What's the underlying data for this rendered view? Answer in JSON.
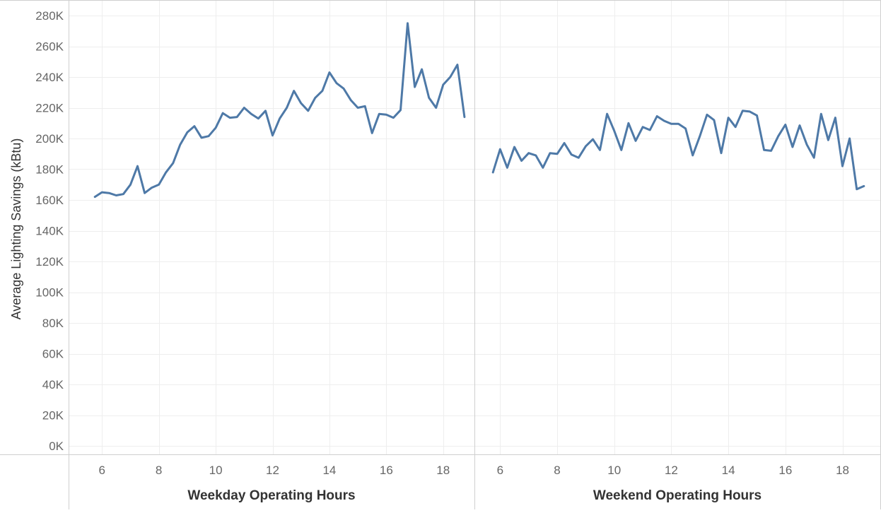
{
  "chart_data": {
    "type": "line",
    "ylabel": "Average Lighting Savings (kBtu)",
    "ylim": [
      0,
      280000
    ],
    "y_ticks": [
      {
        "value": 0,
        "label": "0K"
      },
      {
        "value": 20000,
        "label": "20K"
      },
      {
        "value": 40000,
        "label": "40K"
      },
      {
        "value": 60000,
        "label": "60K"
      },
      {
        "value": 80000,
        "label": "80K"
      },
      {
        "value": 100000,
        "label": "100K"
      },
      {
        "value": 120000,
        "label": "120K"
      },
      {
        "value": 140000,
        "label": "140K"
      },
      {
        "value": 160000,
        "label": "160K"
      },
      {
        "value": 180000,
        "label": "180K"
      },
      {
        "value": 200000,
        "label": "200K"
      },
      {
        "value": 220000,
        "label": "220K"
      },
      {
        "value": 240000,
        "label": "240K"
      },
      {
        "value": 260000,
        "label": "260K"
      },
      {
        "value": 280000,
        "label": "280K"
      }
    ],
    "grid": true,
    "line_color": "#4e79a7",
    "panels": [
      {
        "xlabel": "Weekday Operating Hours",
        "xlim": [
          4.85,
          19.1
        ],
        "x_ticks": [
          6,
          8,
          10,
          12,
          14,
          16,
          18
        ],
        "x": [
          5.75,
          6.0,
          6.25,
          6.5,
          6.75,
          7.0,
          7.25,
          7.5,
          7.75,
          8.0,
          8.25,
          8.5,
          8.75,
          9.0,
          9.25,
          9.5,
          9.75,
          10.0,
          10.25,
          10.5,
          10.75,
          11.0,
          11.25,
          11.5,
          11.75,
          12.0,
          12.25,
          12.5,
          12.75,
          13.0,
          13.25,
          13.5,
          13.75,
          14.0,
          14.25,
          14.5,
          14.75,
          15.0,
          15.25,
          15.5,
          15.75,
          16.0,
          16.25,
          16.5,
          16.75,
          17.0,
          17.25,
          17.5,
          17.75,
          18.0,
          18.25,
          18.5,
          18.75
        ],
        "y": [
          162000,
          165000,
          164500,
          163000,
          163800,
          170000,
          182000,
          164500,
          168000,
          170000,
          178000,
          184000,
          196000,
          204000,
          208000,
          200500,
          201500,
          207000,
          216500,
          213500,
          214000,
          220000,
          216000,
          213000,
          218000,
          202000,
          213000,
          220000,
          231000,
          223000,
          218000,
          226500,
          231000,
          243000,
          236000,
          232500,
          225000,
          220000,
          221000,
          203500,
          216000,
          215500,
          213500,
          218500,
          275000,
          233500,
          245000,
          226500,
          220000,
          235000,
          240000,
          248000,
          214000
        ]
      },
      {
        "xlabel": "Weekend Operating Hours",
        "xlim": [
          5.1,
          19.35
        ],
        "x_ticks": [
          6,
          8,
          10,
          12,
          14,
          16,
          18
        ],
        "x": [
          5.75,
          6.0,
          6.25,
          6.5,
          6.75,
          7.0,
          7.25,
          7.5,
          7.75,
          8.0,
          8.25,
          8.5,
          8.75,
          9.0,
          9.25,
          9.5,
          9.75,
          10.0,
          10.25,
          10.5,
          10.75,
          11.0,
          11.25,
          11.5,
          11.75,
          12.0,
          12.25,
          12.5,
          12.75,
          13.0,
          13.25,
          13.5,
          13.75,
          14.0,
          14.25,
          14.5,
          14.75,
          15.0,
          15.25,
          15.5,
          15.75,
          16.0,
          16.25,
          16.5,
          16.75,
          17.0,
          17.25,
          17.5,
          17.75,
          18.0,
          18.25,
          18.5,
          18.75
        ],
        "y": [
          178000,
          193000,
          181000,
          194500,
          185500,
          190500,
          189000,
          181000,
          190500,
          190000,
          197000,
          189500,
          187500,
          195000,
          199500,
          192500,
          216000,
          205000,
          192500,
          210000,
          198500,
          207500,
          205500,
          214500,
          211500,
          209500,
          209500,
          206500,
          189000,
          201500,
          215500,
          212000,
          190500,
          213500,
          207500,
          218000,
          217500,
          215000,
          192500,
          192000,
          201500,
          209000,
          194500,
          208500,
          196000,
          187500,
          216000,
          199000,
          213500,
          182000,
          200000,
          167000,
          169000
        ]
      }
    ]
  }
}
